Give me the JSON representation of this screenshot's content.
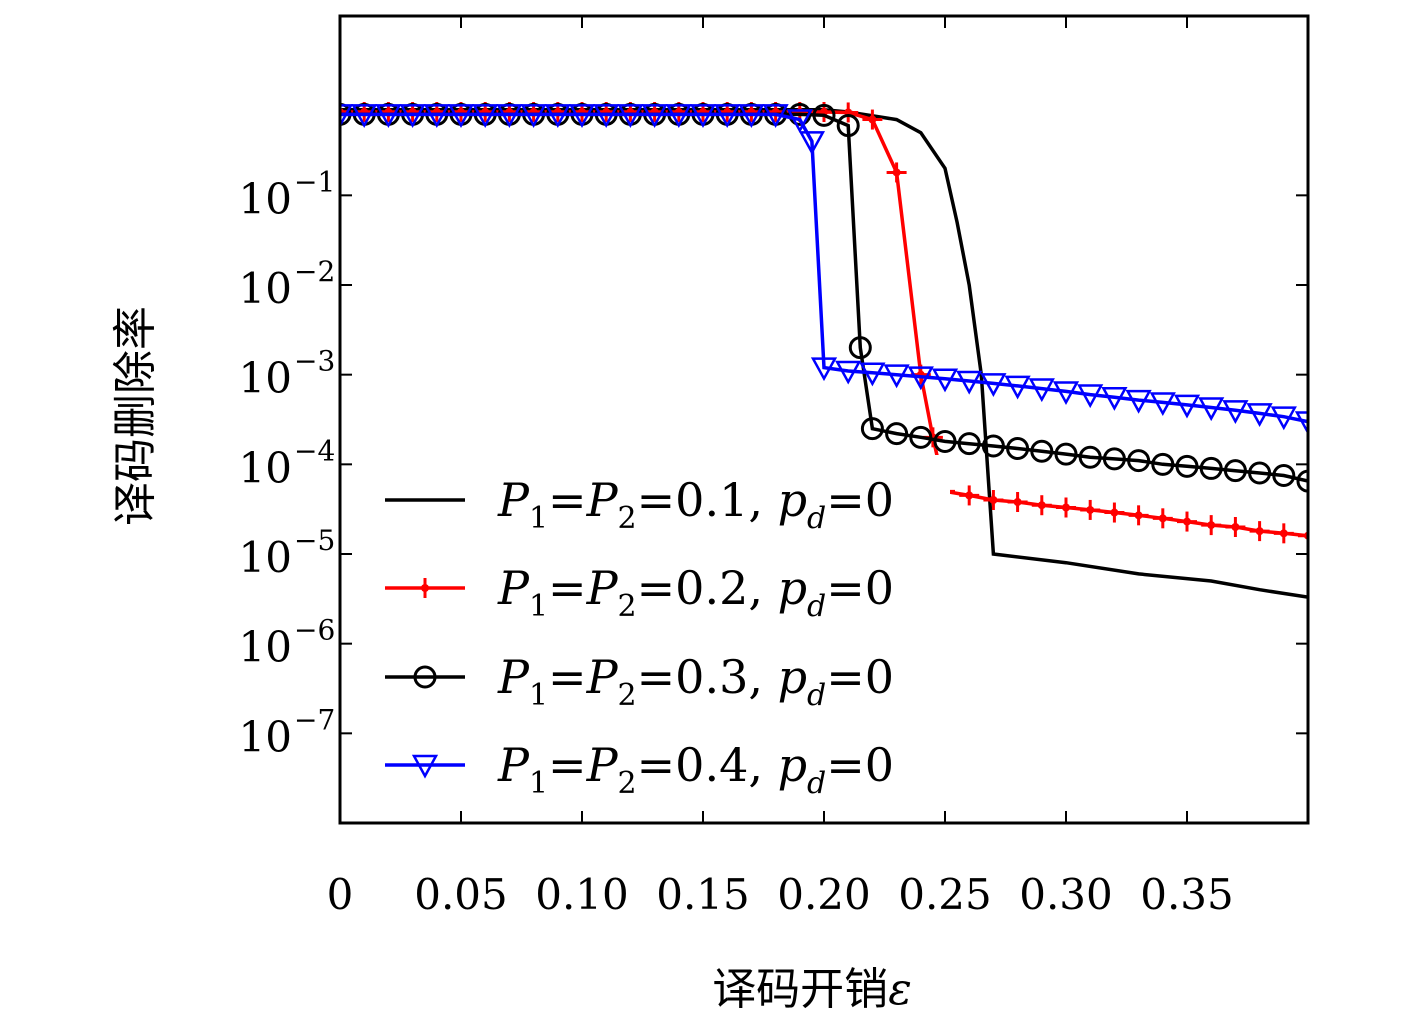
{
  "chart_data": {
    "type": "line",
    "title": "",
    "xlabel": "译码开销",
    "xlabel_symbol": "ε",
    "ylabel": "译码删除率",
    "xlim": [
      0,
      0.4
    ],
    "ylim_log10": [
      -8,
      1
    ],
    "yscale": "log",
    "grid": false,
    "legend_position": "lower-left",
    "x_ticks": [
      0,
      0.05,
      0.1,
      0.15,
      0.2,
      0.25,
      0.3,
      0.35
    ],
    "x_tick_labels": [
      "0",
      "0.05",
      "0.10",
      "0.15",
      "0.20",
      "0.25",
      "0.30",
      "0.35"
    ],
    "y_tick_exponents": [
      -1,
      -2,
      -3,
      -4,
      -5,
      -6,
      -7
    ],
    "y_tick_labels": [
      "10",
      "10",
      "10",
      "10",
      "10",
      "10",
      "10"
    ],
    "y_tick_powers": [
      "−1",
      "−2",
      "−3",
      "−4",
      "−5",
      "−6",
      "−7"
    ],
    "series": [
      {
        "name": "P1=P2=0.1, pd=0",
        "color": "#000000",
        "marker": "none",
        "x": [
          0,
          0.05,
          0.1,
          0.15,
          0.2,
          0.21,
          0.23,
          0.24,
          0.25,
          0.255,
          0.26,
          0.265,
          0.27,
          0.3,
          0.33,
          0.36,
          0.38,
          0.4
        ],
        "y": [
          0.9,
          0.9,
          0.9,
          0.9,
          0.9,
          0.85,
          0.7,
          0.5,
          0.2,
          0.05,
          0.01,
          0.001,
          1e-05,
          8e-06,
          6e-06,
          5e-06,
          4e-06,
          3.3e-06
        ]
      },
      {
        "name": "P1=P2=0.2, pd=0",
        "color": "#ff0000",
        "marker": "plus",
        "x": [
          0,
          0.01,
          0.02,
          0.03,
          0.04,
          0.05,
          0.06,
          0.07,
          0.08,
          0.09,
          0.1,
          0.11,
          0.12,
          0.13,
          0.14,
          0.15,
          0.16,
          0.17,
          0.18,
          0.19,
          0.2,
          0.21,
          0.22,
          0.23,
          0.24,
          0.245,
          0.25,
          0.26,
          0.27,
          0.28,
          0.29,
          0.3,
          0.31,
          0.32,
          0.33,
          0.34,
          0.35,
          0.36,
          0.37,
          0.38,
          0.39,
          0.4
        ],
        "y": [
          0.85,
          0.85,
          0.85,
          0.85,
          0.85,
          0.85,
          0.85,
          0.85,
          0.85,
          0.85,
          0.85,
          0.85,
          0.85,
          0.85,
          0.85,
          0.85,
          0.85,
          0.85,
          0.85,
          0.85,
          0.85,
          0.84,
          0.7,
          0.18,
          0.001,
          0.0002,
          5e-05,
          4.5e-05,
          4e-05,
          3.8e-05,
          3.5e-05,
          3.3e-05,
          3.1e-05,
          2.9e-05,
          2.7e-05,
          2.5e-05,
          2.3e-05,
          2.1e-05,
          2e-05,
          1.8e-05,
          1.7e-05,
          1.6e-05
        ]
      },
      {
        "name": "P1=P2=0.3, pd=0",
        "color": "#000000",
        "marker": "circle",
        "x": [
          0,
          0.01,
          0.02,
          0.03,
          0.04,
          0.05,
          0.06,
          0.07,
          0.08,
          0.09,
          0.1,
          0.11,
          0.12,
          0.13,
          0.14,
          0.15,
          0.16,
          0.17,
          0.18,
          0.19,
          0.2,
          0.21,
          0.215,
          0.22,
          0.23,
          0.24,
          0.25,
          0.26,
          0.27,
          0.28,
          0.29,
          0.3,
          0.31,
          0.32,
          0.33,
          0.34,
          0.35,
          0.36,
          0.37,
          0.38,
          0.39,
          0.4
        ],
        "y": [
          0.8,
          0.8,
          0.8,
          0.8,
          0.8,
          0.8,
          0.8,
          0.8,
          0.8,
          0.8,
          0.8,
          0.8,
          0.8,
          0.8,
          0.8,
          0.8,
          0.8,
          0.8,
          0.8,
          0.8,
          0.78,
          0.6,
          0.002,
          0.00025,
          0.00022,
          0.0002,
          0.00018,
          0.00017,
          0.00016,
          0.00015,
          0.00014,
          0.00013,
          0.00012,
          0.000115,
          0.00011,
          0.0001,
          9.5e-05,
          9e-05,
          8.5e-05,
          8e-05,
          7.5e-05,
          6.5e-05
        ]
      },
      {
        "name": "P1=P2=0.4, pd=0",
        "color": "#0000ff",
        "marker": "triangle-down",
        "x": [
          0,
          0.01,
          0.02,
          0.03,
          0.04,
          0.05,
          0.06,
          0.07,
          0.08,
          0.09,
          0.1,
          0.11,
          0.12,
          0.13,
          0.14,
          0.15,
          0.16,
          0.17,
          0.18,
          0.19,
          0.195,
          0.2,
          0.21,
          0.22,
          0.23,
          0.24,
          0.25,
          0.26,
          0.27,
          0.28,
          0.29,
          0.3,
          0.31,
          0.32,
          0.33,
          0.34,
          0.35,
          0.36,
          0.37,
          0.38,
          0.39,
          0.4
        ],
        "y": [
          0.8,
          0.8,
          0.8,
          0.8,
          0.8,
          0.8,
          0.8,
          0.8,
          0.8,
          0.8,
          0.8,
          0.8,
          0.8,
          0.8,
          0.8,
          0.8,
          0.8,
          0.8,
          0.8,
          0.7,
          0.4,
          0.0012,
          0.0011,
          0.00105,
          0.001,
          0.00095,
          0.0009,
          0.00085,
          0.0008,
          0.00075,
          0.0007,
          0.00065,
          0.0006,
          0.00056,
          0.00052,
          0.00049,
          0.00046,
          0.00043,
          0.0004,
          0.00037,
          0.00034,
          0.0003
        ]
      }
    ],
    "legend": [
      {
        "P1": "P",
        "s1": "1",
        "eq1": "=",
        "P2": "P",
        "s2": "2",
        "val": "=0.1, ",
        "pd": "p",
        "sd": "d",
        "tail": "=0"
      },
      {
        "P1": "P",
        "s1": "1",
        "eq1": "=",
        "P2": "P",
        "s2": "2",
        "val": "=0.2, ",
        "pd": "p",
        "sd": "d",
        "tail": "=0"
      },
      {
        "P1": "P",
        "s1": "1",
        "eq1": "=",
        "P2": "P",
        "s2": "2",
        "val": "=0.3, ",
        "pd": "p",
        "sd": "d",
        "tail": "=0"
      },
      {
        "P1": "P",
        "s1": "1",
        "eq1": "=",
        "P2": "P",
        "s2": "2",
        "val": "=0.4, ",
        "pd": "p",
        "sd": "d",
        "tail": "=0"
      }
    ]
  }
}
